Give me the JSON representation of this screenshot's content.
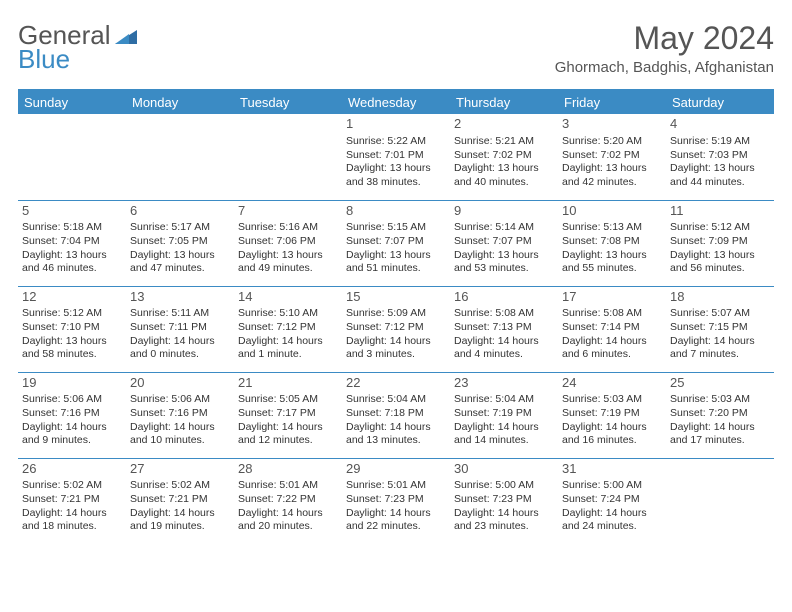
{
  "brand": {
    "part1": "General",
    "part2": "Blue"
  },
  "title": "May 2024",
  "location": "Ghormach, Badghis, Afghanistan",
  "colors": {
    "accent": "#3b8bc4",
    "text": "#333333",
    "muted": "#555555",
    "background": "#ffffff"
  },
  "columns": [
    "Sunday",
    "Monday",
    "Tuesday",
    "Wednesday",
    "Thursday",
    "Friday",
    "Saturday"
  ],
  "weeks": [
    [
      null,
      null,
      null,
      {
        "n": "1",
        "sr": "5:22 AM",
        "ss": "7:01 PM",
        "dl": "13 hours and 38 minutes."
      },
      {
        "n": "2",
        "sr": "5:21 AM",
        "ss": "7:02 PM",
        "dl": "13 hours and 40 minutes."
      },
      {
        "n": "3",
        "sr": "5:20 AM",
        "ss": "7:02 PM",
        "dl": "13 hours and 42 minutes."
      },
      {
        "n": "4",
        "sr": "5:19 AM",
        "ss": "7:03 PM",
        "dl": "13 hours and 44 minutes."
      }
    ],
    [
      {
        "n": "5",
        "sr": "5:18 AM",
        "ss": "7:04 PM",
        "dl": "13 hours and 46 minutes."
      },
      {
        "n": "6",
        "sr": "5:17 AM",
        "ss": "7:05 PM",
        "dl": "13 hours and 47 minutes."
      },
      {
        "n": "7",
        "sr": "5:16 AM",
        "ss": "7:06 PM",
        "dl": "13 hours and 49 minutes."
      },
      {
        "n": "8",
        "sr": "5:15 AM",
        "ss": "7:07 PM",
        "dl": "13 hours and 51 minutes."
      },
      {
        "n": "9",
        "sr": "5:14 AM",
        "ss": "7:07 PM",
        "dl": "13 hours and 53 minutes."
      },
      {
        "n": "10",
        "sr": "5:13 AM",
        "ss": "7:08 PM",
        "dl": "13 hours and 55 minutes."
      },
      {
        "n": "11",
        "sr": "5:12 AM",
        "ss": "7:09 PM",
        "dl": "13 hours and 56 minutes."
      }
    ],
    [
      {
        "n": "12",
        "sr": "5:12 AM",
        "ss": "7:10 PM",
        "dl": "13 hours and 58 minutes."
      },
      {
        "n": "13",
        "sr": "5:11 AM",
        "ss": "7:11 PM",
        "dl": "14 hours and 0 minutes."
      },
      {
        "n": "14",
        "sr": "5:10 AM",
        "ss": "7:12 PM",
        "dl": "14 hours and 1 minute."
      },
      {
        "n": "15",
        "sr": "5:09 AM",
        "ss": "7:12 PM",
        "dl": "14 hours and 3 minutes."
      },
      {
        "n": "16",
        "sr": "5:08 AM",
        "ss": "7:13 PM",
        "dl": "14 hours and 4 minutes."
      },
      {
        "n": "17",
        "sr": "5:08 AM",
        "ss": "7:14 PM",
        "dl": "14 hours and 6 minutes."
      },
      {
        "n": "18",
        "sr": "5:07 AM",
        "ss": "7:15 PM",
        "dl": "14 hours and 7 minutes."
      }
    ],
    [
      {
        "n": "19",
        "sr": "5:06 AM",
        "ss": "7:16 PM",
        "dl": "14 hours and 9 minutes."
      },
      {
        "n": "20",
        "sr": "5:06 AM",
        "ss": "7:16 PM",
        "dl": "14 hours and 10 minutes."
      },
      {
        "n": "21",
        "sr": "5:05 AM",
        "ss": "7:17 PM",
        "dl": "14 hours and 12 minutes."
      },
      {
        "n": "22",
        "sr": "5:04 AM",
        "ss": "7:18 PM",
        "dl": "14 hours and 13 minutes."
      },
      {
        "n": "23",
        "sr": "5:04 AM",
        "ss": "7:19 PM",
        "dl": "14 hours and 14 minutes."
      },
      {
        "n": "24",
        "sr": "5:03 AM",
        "ss": "7:19 PM",
        "dl": "14 hours and 16 minutes."
      },
      {
        "n": "25",
        "sr": "5:03 AM",
        "ss": "7:20 PM",
        "dl": "14 hours and 17 minutes."
      }
    ],
    [
      {
        "n": "26",
        "sr": "5:02 AM",
        "ss": "7:21 PM",
        "dl": "14 hours and 18 minutes."
      },
      {
        "n": "27",
        "sr": "5:02 AM",
        "ss": "7:21 PM",
        "dl": "14 hours and 19 minutes."
      },
      {
        "n": "28",
        "sr": "5:01 AM",
        "ss": "7:22 PM",
        "dl": "14 hours and 20 minutes."
      },
      {
        "n": "29",
        "sr": "5:01 AM",
        "ss": "7:23 PM",
        "dl": "14 hours and 22 minutes."
      },
      {
        "n": "30",
        "sr": "5:00 AM",
        "ss": "7:23 PM",
        "dl": "14 hours and 23 minutes."
      },
      {
        "n": "31",
        "sr": "5:00 AM",
        "ss": "7:24 PM",
        "dl": "14 hours and 24 minutes."
      },
      null
    ]
  ],
  "labels": {
    "sunrise": "Sunrise:",
    "sunset": "Sunset:",
    "daylight": "Daylight:"
  }
}
